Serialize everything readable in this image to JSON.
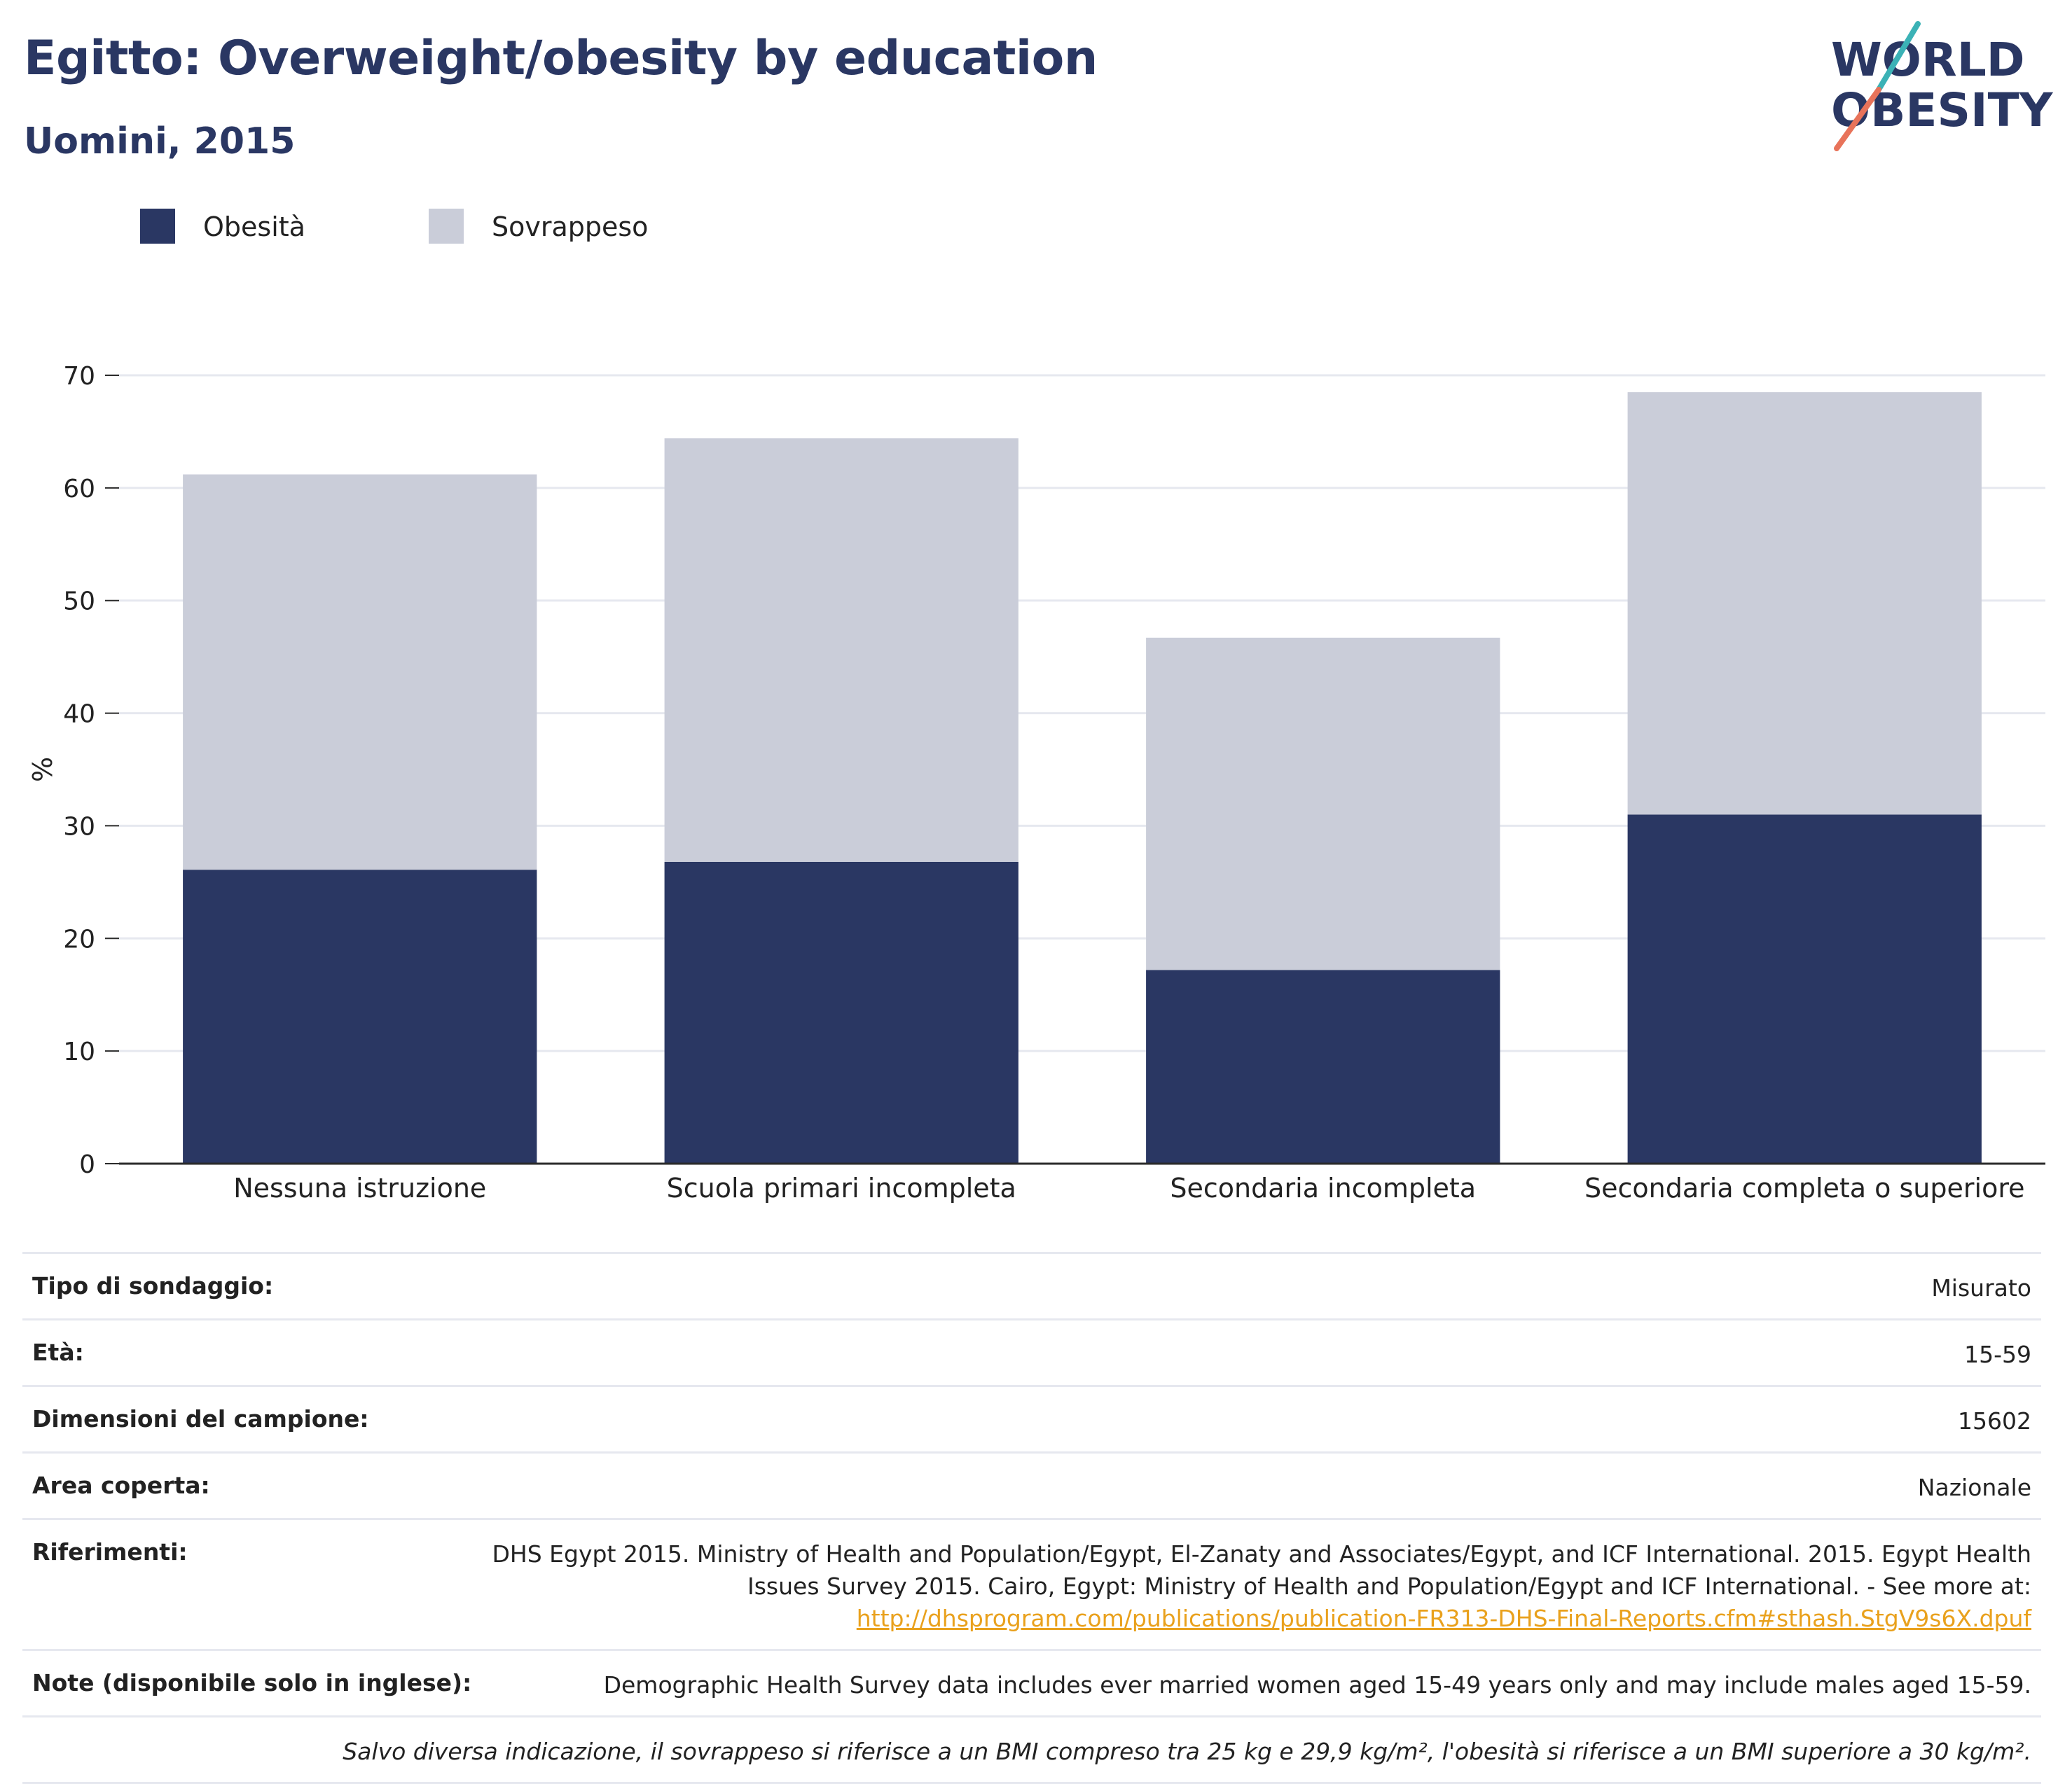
{
  "header": {
    "title": "Egitto: Overweight/obesity by education",
    "subtitle": "Uomini, 2015"
  },
  "logo": {
    "line1": "WORLD",
    "line2": "OBESITY"
  },
  "colors": {
    "obesity": "#2a3763",
    "overweight": "#cacdd9",
    "accent_teal": "#3bb2b6",
    "accent_coral": "#e8735a",
    "link": "#e9a11d"
  },
  "legend": [
    {
      "label": "Obesità",
      "color": "#2a3763"
    },
    {
      "label": "Sovrappeso",
      "color": "#cacdd9"
    }
  ],
  "chart_data": {
    "type": "bar",
    "stacked": true,
    "categories": [
      "Nessuna istruzione",
      "Scuola primari incompleta",
      "Secondaria incompleta",
      "Secondaria completa o superiore"
    ],
    "series": [
      {
        "name": "Obesità",
        "values": [
          26.1,
          26.8,
          17.2,
          31.0
        ]
      },
      {
        "name": "Sovrappeso",
        "values": [
          35.1,
          37.6,
          29.5,
          37.5
        ]
      }
    ],
    "totals": [
      61.2,
      64.4,
      46.7,
      68.5
    ],
    "ylabel": "%",
    "ylim": [
      0,
      70
    ],
    "yticks": [
      0,
      10,
      20,
      30,
      40,
      50,
      60,
      70
    ],
    "grid": true
  },
  "info": {
    "survey_type": {
      "label": "Tipo di sondaggio:",
      "value": "Misurato"
    },
    "age": {
      "label": "Età:",
      "value": "15-59"
    },
    "sample_size": {
      "label": "Dimensioni del campione:",
      "value": "15602"
    },
    "area": {
      "label": "Area coperta:",
      "value": "Nazionale"
    },
    "references": {
      "label": "Riferimenti:",
      "line1": "DHS Egypt 2015. Ministry of Health and Population/Egypt, El-Zanaty and Associates/Egypt, and ICF International. 2015. Egypt Health",
      "line2": "Issues Survey 2015. Cairo, Egypt: Ministry of Health and Population/Egypt and ICF International. - See more at:",
      "link": "http://dhsprogram.com/publications/publication-FR313-DHS-Final-Reports.cfm#sthash.StgV9s6X.dpuf"
    },
    "notes": {
      "label": "Note (disponibile solo in inglese):",
      "value": "Demographic Health Survey data includes ever married women aged 15-49 years only and may include males aged 15-59."
    },
    "footnote": "Salvo diversa indicazione, il sovrappeso si riferisce a un BMI compreso tra 25 kg e 29,9 kg/m², l'obesità si riferisce a un BMI superiore a 30 kg/m²."
  }
}
